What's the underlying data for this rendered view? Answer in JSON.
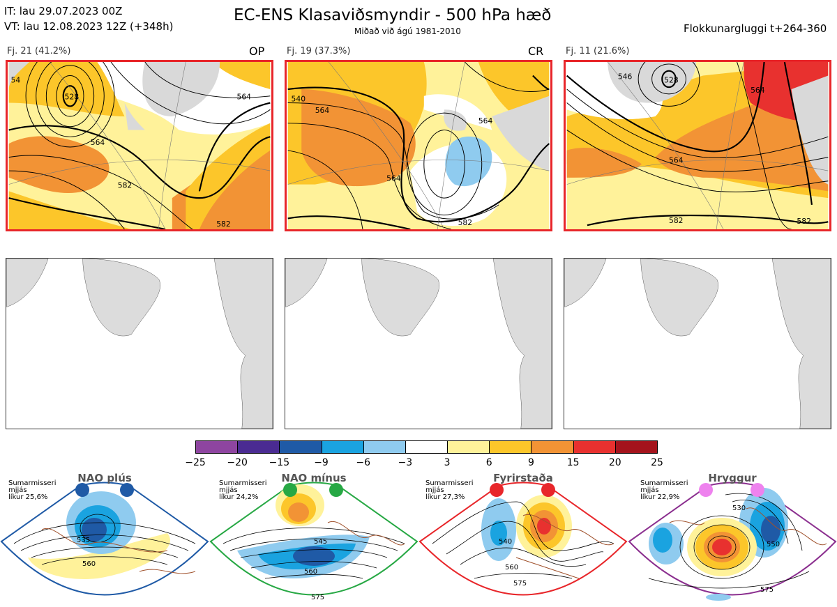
{
  "header": {
    "it": "IT: lau 29.07.2023 00Z",
    "vt": "VT: lau 12.08.2023 12Z  (+348h)",
    "title": "EC-ENS Klasaviðsmyndir - 500 hPa hæð",
    "subtitle": "Miðað við ágú 1981-2010",
    "window": "Flokkunargluggi t+264-360"
  },
  "clusters": [
    {
      "label": "Fj. 21 (41.2%)",
      "type": "OP",
      "contours": [
        "564",
        "564",
        "582",
        "582",
        "528",
        "54"
      ]
    },
    {
      "label": "Fj. 19 (37.3%)",
      "type": "CR",
      "contours": [
        "564",
        "564",
        "564",
        "582",
        "540"
      ]
    },
    {
      "label": "Fj. 11 (21.6%)",
      "type": "",
      "contours": [
        "546",
        "564",
        "564",
        "582",
        "582",
        "528"
      ]
    }
  ],
  "colorbar": {
    "ticks": [
      "−25",
      "−20",
      "−15",
      "−9",
      "−6",
      "−3",
      "3",
      "6",
      "9",
      "15",
      "20",
      "25"
    ],
    "colors": [
      "#8e45a0",
      "#4a2b92",
      "#1f5aa6",
      "#1aa3e0",
      "#8fcbef",
      "#ffffff",
      "#fff29a",
      "#fcc62a",
      "#f29335",
      "#e8312f",
      "#a4131c"
    ]
  },
  "regimes": [
    {
      "title": "NAO plús",
      "note": [
        "Sumarmisseri",
        "mjjás",
        "líkur 25,6%"
      ],
      "color": "#1f5aa6",
      "contours": [
        "535",
        "560"
      ]
    },
    {
      "title": "NAO mínus",
      "note": [
        "Sumarmisseri",
        "mjjás",
        "líkur 24,2%"
      ],
      "color": "#27a844",
      "contours": [
        "545",
        "560",
        "575"
      ]
    },
    {
      "title": "Fyrirstaða",
      "note": [
        "Sumarmisseri",
        "mjjás",
        "líkur 27,3%"
      ],
      "color": "#e8262a",
      "contours": [
        "540",
        "560",
        "575"
      ]
    },
    {
      "title": "Hryggur",
      "note": [
        "Sumarmisseri",
        "mjjás",
        "líkur 22,9%"
      ],
      "color": "#8b2f8f",
      "contours": [
        "530",
        "550",
        "575"
      ]
    }
  ]
}
